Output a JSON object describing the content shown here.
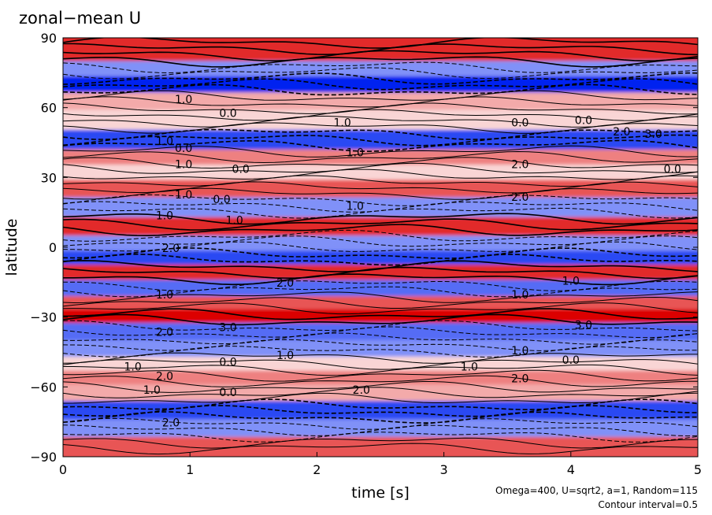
{
  "chart_data": {
    "type": "heatmap",
    "title": "zonal−mean U",
    "xlabel": "time [s]",
    "ylabel": "latitude",
    "xlim": [
      0,
      5
    ],
    "ylim": [
      -90,
      90
    ],
    "x_ticks": [
      0,
      1,
      2,
      3,
      4,
      5
    ],
    "x_tick_labels": [
      "0",
      "1",
      "2",
      "3",
      "4",
      "5"
    ],
    "y_ticks": [
      -90,
      -60,
      -30,
      0,
      30,
      60,
      90
    ],
    "y_tick_labels": [
      "−90",
      "−60",
      "−30",
      "0",
      "30",
      "60",
      "90"
    ],
    "annotation_params": "Omega=400, U=sqrt2, a=1, Random=115",
    "annotation_contour": "Contour interval=0.5",
    "contour_interval": 0.5,
    "colors": {
      "positive": "#e00000",
      "negative": "#0020f0",
      "zero": "#ffffff"
    },
    "bands": [
      {
        "lat": 83,
        "value": 2.5
      },
      {
        "lat": 77,
        "value": -1.5
      },
      {
        "lat": 70,
        "value": -3.0
      },
      {
        "lat": 63,
        "value": 1.0
      },
      {
        "lat": 55,
        "value": 0.5
      },
      {
        "lat": 46,
        "value": -2.5
      },
      {
        "lat": 38,
        "value": 1.5
      },
      {
        "lat": 33,
        "value": 0.5
      },
      {
        "lat": 25,
        "value": 2.0
      },
      {
        "lat": 18,
        "value": -1.5
      },
      {
        "lat": 8,
        "value": 2.5
      },
      {
        "lat": 2,
        "value": -1.5
      },
      {
        "lat": -5,
        "value": -2.5
      },
      {
        "lat": -10,
        "value": 2.5
      },
      {
        "lat": -18,
        "value": -2.0
      },
      {
        "lat": -24,
        "value": 2.0
      },
      {
        "lat": -29,
        "value": 3.0
      },
      {
        "lat": -36,
        "value": -2.0
      },
      {
        "lat": -44,
        "value": -1.5
      },
      {
        "lat": -50,
        "value": 0.5
      },
      {
        "lat": -56,
        "value": 1.5
      },
      {
        "lat": -62,
        "value": 1.0
      },
      {
        "lat": -70,
        "value": -2.5
      },
      {
        "lat": -78,
        "value": -1.5
      },
      {
        "lat": -85,
        "value": 2.0
      }
    ],
    "contour_labels": [
      {
        "text": "1.0",
        "t": 0.95,
        "lat": 62
      },
      {
        "text": "0.0",
        "t": 1.3,
        "lat": 56
      },
      {
        "text": "1.0",
        "t": 2.2,
        "lat": 52
      },
      {
        "text": "1.0",
        "t": 0.8,
        "lat": 44
      },
      {
        "text": "0.0",
        "t": 0.95,
        "lat": 41
      },
      {
        "text": "1.0",
        "t": 0.95,
        "lat": 34
      },
      {
        "text": "0.0",
        "t": 1.4,
        "lat": 32
      },
      {
        "text": "1.0",
        "t": 2.3,
        "lat": 39
      },
      {
        "text": "1.0",
        "t": 0.95,
        "lat": 21
      },
      {
        "text": "0.0",
        "t": 1.25,
        "lat": 19
      },
      {
        "text": "1.0",
        "t": 0.8,
        "lat": 12
      },
      {
        "text": "1.0",
        "t": 1.35,
        "lat": 10
      },
      {
        "text": "1.0",
        "t": 2.3,
        "lat": 16
      },
      {
        "text": "2.0",
        "t": 0.85,
        "lat": -2
      },
      {
        "text": "2.0",
        "t": 1.75,
        "lat": -17
      },
      {
        "text": "1.0",
        "t": 0.8,
        "lat": -22
      },
      {
        "text": "2.0",
        "t": 0.8,
        "lat": -38
      },
      {
        "text": "3.0",
        "t": 1.3,
        "lat": -36
      },
      {
        "text": "0.0",
        "t": 1.3,
        "lat": -51
      },
      {
        "text": "1.0",
        "t": 1.75,
        "lat": -48
      },
      {
        "text": "1.0",
        "t": 0.55,
        "lat": -53
      },
      {
        "text": "2.0",
        "t": 0.8,
        "lat": -57
      },
      {
        "text": "1.0",
        "t": 0.7,
        "lat": -63
      },
      {
        "text": "0.0",
        "t": 1.3,
        "lat": -64
      },
      {
        "text": "2.0",
        "t": 0.85,
        "lat": -77
      },
      {
        "text": "2.0",
        "t": 2.35,
        "lat": -63
      },
      {
        "text": "0.0",
        "t": 3.6,
        "lat": 52
      },
      {
        "text": "2.0",
        "t": 3.6,
        "lat": 34
      },
      {
        "text": "2.0",
        "t": 3.6,
        "lat": 20
      },
      {
        "text": "1.0",
        "t": 4.0,
        "lat": -16
      },
      {
        "text": "1.0",
        "t": 3.6,
        "lat": -22
      },
      {
        "text": "3.0",
        "t": 4.1,
        "lat": -35
      },
      {
        "text": "1.0",
        "t": 3.6,
        "lat": -46
      },
      {
        "text": "0.0",
        "t": 4.0,
        "lat": -50
      },
      {
        "text": "1.0",
        "t": 3.2,
        "lat": -53
      },
      {
        "text": "2.0",
        "t": 3.6,
        "lat": -58
      },
      {
        "text": "2.0",
        "t": 4.4,
        "lat": 48
      },
      {
        "text": "3.0",
        "t": 4.65,
        "lat": 47
      },
      {
        "text": "0.0",
        "t": 4.8,
        "lat": 32
      },
      {
        "text": "0.0",
        "t": 4.1,
        "lat": 53
      }
    ]
  }
}
